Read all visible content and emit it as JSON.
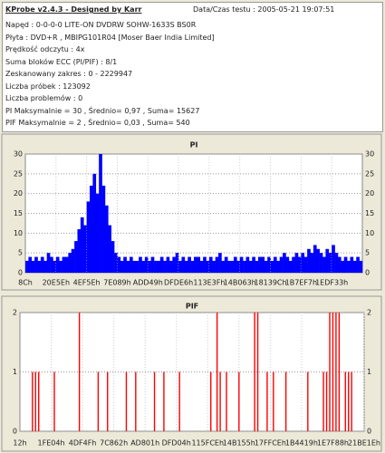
{
  "header": {
    "title": "KProbe v2.4.3 - Designed by Karr",
    "date": "Data/Czas testu : 2005-05-21 19:07:51",
    "lines": [
      "Napęd : 0-0-0-0 LITE-ON DVDRW SOHW-1633S BS0R",
      "Płyta : DVD+R , MBIPG101R04 [Moser Baer India Limited]",
      "Prędkość odczytu : 4x",
      "Suma bloków ECC (PI/PIF) : 8/1",
      "Zeskanowany zakres : 0 - 2229947",
      "Liczba próbek : 123092",
      "Liczba problemów : 0",
      "PI Maksymalnie = 30 , Średnio= 0,97 , Suma= 15627",
      "PIF Maksymalnie = 2 , Średnio= 0,03 , Suma= 540"
    ]
  },
  "chart_data": [
    {
      "type": "bar",
      "title": "PI",
      "color": "#0000ff",
      "grid": true,
      "ylim": [
        0,
        30
      ],
      "yticks": [
        0,
        5,
        10,
        15,
        20,
        25,
        30
      ],
      "categories": [
        "8Ch",
        null,
        null,
        null,
        null,
        null,
        null,
        null,
        null,
        null,
        "20E5Eh",
        null,
        null,
        null,
        null,
        null,
        null,
        null,
        null,
        null,
        "4EF5Eh",
        null,
        null,
        null,
        null,
        null,
        null,
        null,
        null,
        null,
        "7E089h",
        null,
        null,
        null,
        null,
        null,
        null,
        null,
        null,
        null,
        "ADD49h",
        null,
        null,
        null,
        null,
        null,
        null,
        null,
        null,
        null,
        "DFDE6h",
        null,
        null,
        null,
        null,
        null,
        null,
        null,
        null,
        null,
        "113E3Fh",
        null,
        null,
        null,
        null,
        null,
        null,
        null,
        null,
        null,
        "14B063h",
        null,
        null,
        null,
        null,
        null,
        null,
        null,
        null,
        null,
        "18139Ch",
        null,
        null,
        null,
        null,
        null,
        null,
        null,
        null,
        null,
        "1B7EF7h",
        null,
        null,
        null,
        null,
        null,
        null,
        null,
        null,
        null,
        "1EDF33h",
        null,
        null,
        null,
        null,
        null,
        null,
        null,
        null,
        null
      ],
      "values": [
        3,
        4,
        3,
        4,
        3,
        4,
        3,
        5,
        4,
        3,
        4,
        3,
        4,
        4,
        5,
        6,
        8,
        11,
        14,
        12,
        18,
        22,
        25,
        20,
        30,
        22,
        17,
        12,
        8,
        5,
        4,
        3,
        4,
        3,
        4,
        3,
        3,
        4,
        3,
        4,
        3,
        4,
        3,
        3,
        4,
        3,
        4,
        3,
        4,
        5,
        3,
        4,
        3,
        4,
        3,
        4,
        4,
        3,
        4,
        3,
        4,
        3,
        4,
        5,
        3,
        4,
        3,
        3,
        4,
        3,
        4,
        3,
        4,
        3,
        4,
        3,
        4,
        4,
        3,
        4,
        3,
        4,
        3,
        4,
        5,
        4,
        3,
        4,
        5,
        4,
        5,
        4,
        6,
        5,
        7,
        6,
        5,
        4,
        6,
        5,
        7,
        5,
        4,
        3,
        4,
        3,
        4,
        3,
        4,
        3
      ]
    },
    {
      "type": "bar",
      "title": "PIF",
      "color": "#ff0000",
      "grid": true,
      "ylim": [
        0,
        2
      ],
      "yticks": [
        0,
        1,
        2
      ],
      "categories": [
        "12h",
        null,
        null,
        null,
        null,
        null,
        null,
        null,
        null,
        null,
        "1FE04h",
        null,
        null,
        null,
        null,
        null,
        null,
        null,
        null,
        null,
        "4DF4Fh",
        null,
        null,
        null,
        null,
        null,
        null,
        null,
        null,
        null,
        "7C862h",
        null,
        null,
        null,
        null,
        null,
        null,
        null,
        null,
        null,
        "AD801h",
        null,
        null,
        null,
        null,
        null,
        null,
        null,
        null,
        null,
        "DFD04h",
        null,
        null,
        null,
        null,
        null,
        null,
        null,
        null,
        null,
        "115FCEh",
        null,
        null,
        null,
        null,
        null,
        null,
        null,
        null,
        null,
        "14B155h",
        null,
        null,
        null,
        null,
        null,
        null,
        null,
        null,
        null,
        "17FFCEh",
        null,
        null,
        null,
        null,
        null,
        null,
        null,
        null,
        null,
        "1B4419h",
        null,
        null,
        null,
        null,
        null,
        null,
        null,
        null,
        null,
        "1E7F88h",
        null,
        null,
        null,
        null,
        null,
        null,
        null,
        null,
        null,
        "21BE1Eh"
      ],
      "values": [
        0,
        0,
        0,
        0,
        1,
        1,
        1,
        0,
        0,
        0,
        0,
        1,
        0,
        0,
        0,
        0,
        0,
        0,
        0,
        2,
        0,
        0,
        0,
        0,
        0,
        1,
        0,
        0,
        1,
        0,
        0,
        0,
        0,
        0,
        1,
        0,
        0,
        1,
        0,
        0,
        0,
        0,
        0,
        1,
        0,
        0,
        1,
        0,
        0,
        0,
        0,
        1,
        0,
        0,
        0,
        0,
        0,
        0,
        0,
        0,
        0,
        1,
        0,
        2,
        1,
        0,
        1,
        0,
        0,
        0,
        1,
        0,
        0,
        0,
        0,
        2,
        2,
        0,
        0,
        1,
        0,
        1,
        0,
        0,
        0,
        1,
        0,
        0,
        0,
        0,
        0,
        0,
        1,
        0,
        0,
        0,
        0,
        1,
        1,
        2,
        2,
        2,
        2,
        0,
        1,
        1,
        1,
        0,
        0,
        0,
        0
      ]
    }
  ]
}
